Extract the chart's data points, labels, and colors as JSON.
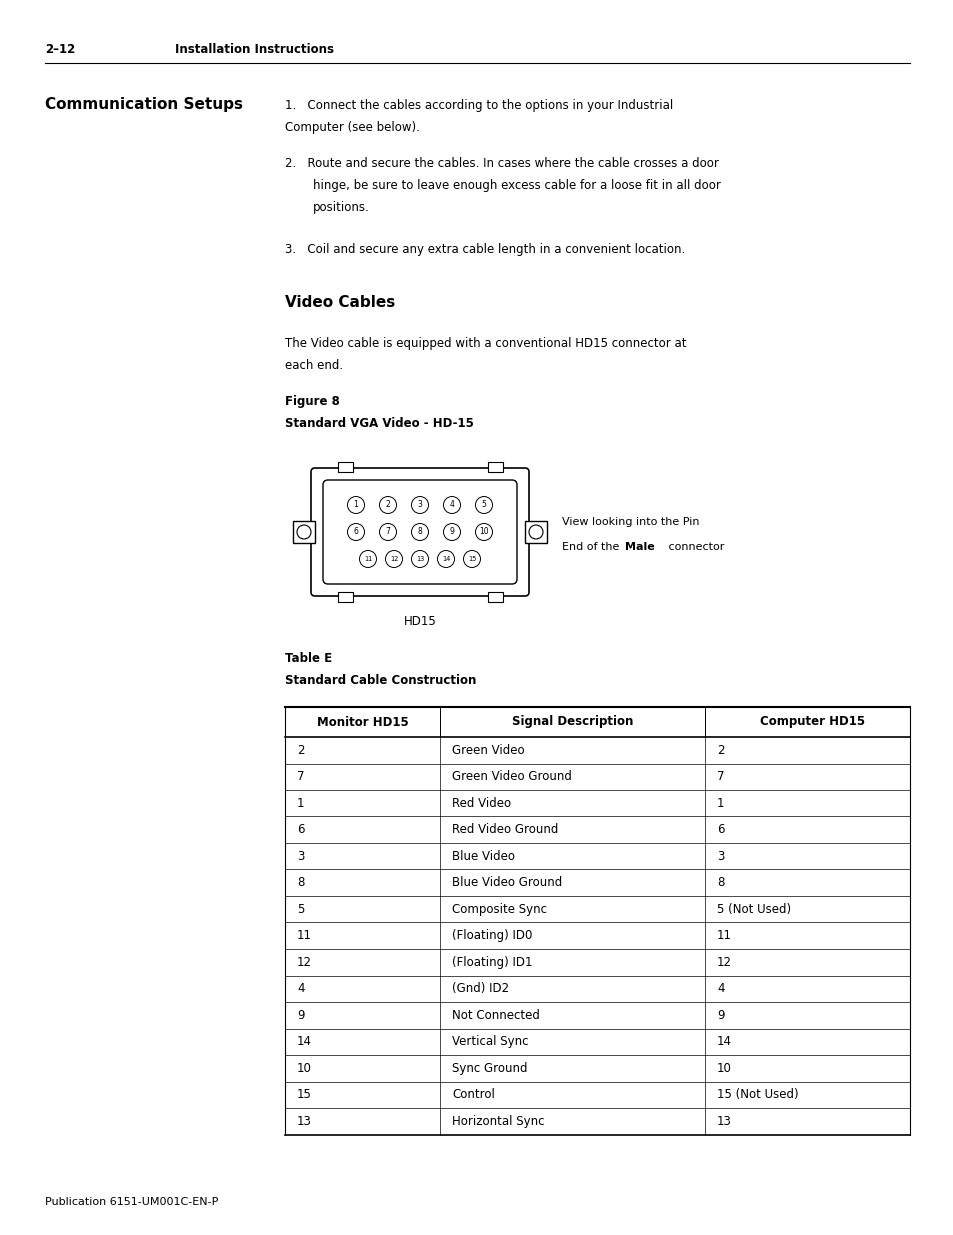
{
  "page_header_left": "2–12",
  "page_header_right": "Installation Instructions",
  "section_title": "Communication Setups",
  "item1": "1. Connect the cables according to the options in your Industrial\nComputer (see below).",
  "item2": "2. Route and secure the cables. In cases where the cable crosses a door\n    hinge, be sure to leave enough excess cable for a loose fit in all door\n    positions.",
  "item3": "3. Coil and secure any extra cable length in a convenient location.",
  "subsection_title": "Video Cables",
  "para1": "The Video cable is equipped with a conventional HD15 connector at\neach end.",
  "figure_label": "Figure 8",
  "figure_title": "Standard VGA Video - HD-15",
  "connector_label": "HD15",
  "view_text_line1": "View looking into the Pin",
  "view_text_line2": "End of the ",
  "view_text_bold": "Male",
  "view_text_end": " connector",
  "table_label": "Table E",
  "table_title": "Standard Cable Construction",
  "table_headers": [
    "Monitor HD15",
    "Signal Description",
    "Computer HD15"
  ],
  "table_rows": [
    [
      "2",
      "Green Video",
      "2"
    ],
    [
      "7",
      "Green Video Ground",
      "7"
    ],
    [
      "1",
      "Red Video",
      "1"
    ],
    [
      "6",
      "Red Video Ground",
      "6"
    ],
    [
      "3",
      "Blue Video",
      "3"
    ],
    [
      "8",
      "Blue Video Ground",
      "8"
    ],
    [
      "5",
      "Composite Sync",
      "5 (Not Used)"
    ],
    [
      "11",
      "(Floating) ID0",
      "11"
    ],
    [
      "12",
      "(Floating) ID1",
      "12"
    ],
    [
      "4",
      "(Gnd) ID2",
      "4"
    ],
    [
      "9",
      "Not Connected",
      "9"
    ],
    [
      "14",
      "Vertical Sync",
      "14"
    ],
    [
      "10",
      "Sync Ground",
      "10"
    ],
    [
      "15",
      "Control",
      "15 (Not Used)"
    ],
    [
      "13",
      "Horizontal Sync",
      "13"
    ]
  ],
  "footer_text": "Publication 6151-UM001C-EN-P",
  "bg_color": "#ffffff",
  "text_color": "#000000"
}
